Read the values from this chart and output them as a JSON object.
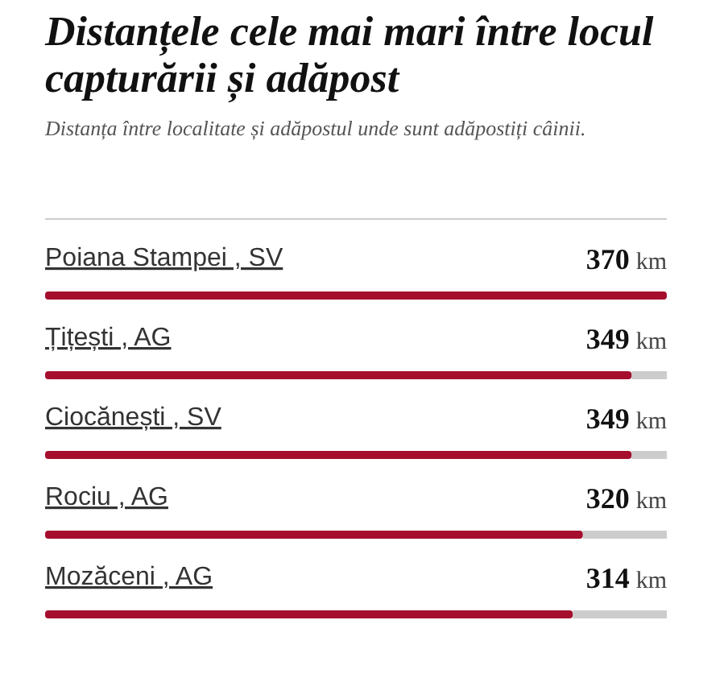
{
  "chart_data": {
    "type": "bar",
    "orientation": "horizontal",
    "title": "Distanțele cele mai mari între locul capturării și adăpost",
    "subtitle": "Distanța între localitate și adăpostul unde sunt adăpostiți câinii.",
    "categories": [
      "Poiana Stampei , SV",
      "Țițești , AG",
      "Ciocănești , SV",
      "Rociu , AG",
      "Mozăceni , AG"
    ],
    "values": [
      370,
      349,
      349,
      320,
      314
    ],
    "value_labels": [
      "370 km",
      "349 km",
      "349 km",
      "320 km",
      "314 km"
    ],
    "color": "#a50e2d",
    "xlim": [
      0,
      370
    ]
  }
}
